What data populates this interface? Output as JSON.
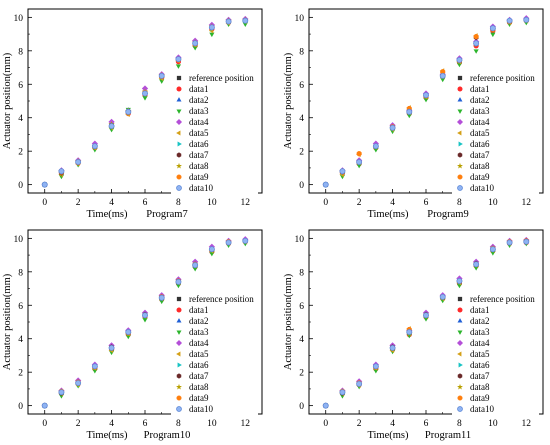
{
  "chart_data": [
    {
      "type": "scatter",
      "ylabel": "Actuator position(mm)",
      "xlabel": "Time(ms)",
      "subtitle": "Program7",
      "xlim": [
        -1,
        13
      ],
      "ylim": [
        -0.5,
        10.5
      ],
      "x_ticks": [
        0,
        2,
        4,
        6,
        8,
        10,
        12
      ],
      "y_ticks": [
        0,
        2,
        4,
        6,
        8,
        10
      ],
      "grid": false,
      "legend_position": "right",
      "x": [
        0,
        1,
        2,
        3,
        4,
        5,
        6,
        7,
        8,
        9,
        10,
        11,
        12
      ],
      "series": [
        {
          "name": "reference position",
          "values": [
            0,
            0.75,
            1.35,
            2.3,
            3.55,
            4.35,
            5.5,
            6.5,
            7.5,
            8.45,
            9.4,
            9.75,
            9.8
          ]
        },
        {
          "name": "data1",
          "values": [
            0,
            0.7,
            1.3,
            2.2,
            3.45,
            4.25,
            5.35,
            6.4,
            7.35,
            8.3,
            9.3,
            9.7,
            9.8
          ]
        },
        {
          "name": "data2",
          "values": [
            0,
            0.8,
            1.4,
            2.35,
            3.6,
            4.45,
            5.6,
            6.55,
            7.55,
            8.5,
            9.45,
            9.8,
            9.85
          ]
        },
        {
          "name": "data3",
          "values": [
            0,
            0.5,
            1.2,
            2.1,
            3.3,
            4.5,
            5.2,
            6.2,
            7.1,
            8.2,
            9.0,
            9.6,
            9.6
          ]
        },
        {
          "name": "data4",
          "values": [
            0,
            0.85,
            1.45,
            2.45,
            3.75,
            4.4,
            5.75,
            6.6,
            7.6,
            8.6,
            9.55,
            9.85,
            9.9
          ]
        },
        {
          "name": "data5",
          "values": [
            0,
            0.6,
            1.25,
            2.2,
            3.4,
            4.2,
            5.4,
            6.35,
            7.4,
            8.35,
            9.2,
            9.65,
            9.75
          ]
        },
        {
          "name": "data6",
          "values": [
            0,
            0.75,
            1.35,
            2.25,
            3.5,
            4.3,
            5.45,
            6.45,
            7.45,
            8.4,
            9.35,
            9.75,
            9.8
          ]
        },
        {
          "name": "data7",
          "values": [
            0,
            0.7,
            1.3,
            2.3,
            3.55,
            4.35,
            5.5,
            6.5,
            7.5,
            8.45,
            9.4,
            9.75,
            9.8
          ]
        },
        {
          "name": "data8",
          "values": [
            0,
            0.8,
            1.4,
            2.3,
            3.6,
            4.4,
            5.55,
            6.55,
            7.5,
            8.5,
            9.45,
            9.8,
            9.85
          ]
        },
        {
          "name": "data9",
          "values": [
            0,
            0.75,
            1.3,
            2.25,
            3.5,
            4.3,
            5.5,
            6.45,
            7.45,
            8.4,
            9.4,
            9.75,
            9.8
          ]
        },
        {
          "name": "data10",
          "values": [
            0,
            0.8,
            1.35,
            2.3,
            3.5,
            4.35,
            5.45,
            6.5,
            7.5,
            8.45,
            9.4,
            9.75,
            9.8
          ]
        }
      ]
    },
    {
      "type": "scatter",
      "ylabel": "Actuator position(mm)",
      "xlabel": "Time(ms)",
      "subtitle": "Program9",
      "xlim": [
        -1,
        13
      ],
      "ylim": [
        -0.5,
        10.5
      ],
      "x_ticks": [
        0,
        2,
        4,
        6,
        8,
        10,
        12
      ],
      "y_ticks": [
        0,
        2,
        4,
        6,
        8,
        10
      ],
      "grid": false,
      "legend_position": "right",
      "x": [
        0,
        1,
        2,
        3,
        4,
        5,
        6,
        7,
        8,
        9,
        10,
        11,
        12
      ],
      "series": [
        {
          "name": "reference position",
          "values": [
            0,
            0.75,
            1.3,
            2.3,
            3.4,
            4.3,
            5.3,
            6.5,
            7.4,
            8.4,
            9.3,
            9.75,
            9.85
          ]
        },
        {
          "name": "data1",
          "values": [
            0,
            0.7,
            1.25,
            2.2,
            3.35,
            4.25,
            5.2,
            6.45,
            7.3,
            8.3,
            9.2,
            9.7,
            9.8
          ]
        },
        {
          "name": "data2",
          "values": [
            0,
            0.8,
            1.4,
            2.35,
            3.5,
            4.4,
            5.4,
            6.55,
            7.5,
            8.5,
            9.4,
            9.8,
            9.9
          ]
        },
        {
          "name": "data3",
          "values": [
            0,
            0.5,
            1.15,
            2.1,
            3.2,
            4.15,
            5.1,
            6.3,
            7.2,
            8.0,
            9.0,
            9.6,
            9.7
          ]
        },
        {
          "name": "data4",
          "values": [
            0,
            0.85,
            1.45,
            2.45,
            3.55,
            4.45,
            5.45,
            6.6,
            7.55,
            8.55,
            9.45,
            9.85,
            9.95
          ]
        },
        {
          "name": "data5",
          "values": [
            0,
            0.6,
            1.8,
            2.25,
            3.3,
            4.6,
            5.25,
            6.8,
            7.35,
            8.9,
            9.25,
            9.7,
            9.8
          ]
        },
        {
          "name": "data6",
          "values": [
            0,
            0.7,
            1.3,
            2.3,
            3.4,
            4.3,
            5.3,
            6.5,
            7.4,
            8.4,
            9.3,
            9.75,
            9.85
          ]
        },
        {
          "name": "data7",
          "values": [
            0,
            0.75,
            1.35,
            2.3,
            3.45,
            4.35,
            5.35,
            6.5,
            7.45,
            8.8,
            9.35,
            9.75,
            9.85
          ]
        },
        {
          "name": "data8",
          "values": [
            0,
            0.8,
            1.3,
            2.25,
            3.4,
            4.3,
            5.3,
            6.45,
            7.4,
            8.4,
            9.3,
            9.75,
            9.8
          ]
        },
        {
          "name": "data9",
          "values": [
            0,
            0.75,
            1.85,
            2.3,
            3.45,
            4.55,
            5.3,
            6.75,
            7.4,
            8.85,
            9.3,
            9.75,
            9.85
          ]
        },
        {
          "name": "data10",
          "values": [
            0,
            0.8,
            1.35,
            2.3,
            3.4,
            4.35,
            5.35,
            6.5,
            7.45,
            8.45,
            9.35,
            9.8,
            9.85
          ]
        }
      ]
    },
    {
      "type": "scatter",
      "ylabel": "Actuator position(mm)",
      "xlabel": "Time(ms)",
      "subtitle": "Program10",
      "xlim": [
        -1,
        13
      ],
      "ylim": [
        -0.5,
        10.5
      ],
      "x_ticks": [
        0,
        2,
        4,
        6,
        8,
        10,
        12
      ],
      "y_ticks": [
        0,
        2,
        4,
        6,
        8,
        10
      ],
      "grid": false,
      "legend_position": "right",
      "x": [
        0,
        1,
        2,
        3,
        4,
        5,
        6,
        7,
        8,
        9,
        10,
        11,
        12
      ],
      "series": [
        {
          "name": "reference position",
          "values": [
            0,
            0.8,
            1.35,
            2.3,
            3.45,
            4.35,
            5.4,
            6.45,
            7.4,
            8.4,
            9.3,
            9.75,
            9.85
          ]
        },
        {
          "name": "data1",
          "values": [
            0,
            0.75,
            1.3,
            2.2,
            3.35,
            4.25,
            5.3,
            6.35,
            7.3,
            8.3,
            9.2,
            9.7,
            9.8
          ]
        },
        {
          "name": "data2",
          "values": [
            0,
            0.85,
            1.45,
            2.4,
            3.55,
            4.45,
            5.5,
            6.55,
            7.5,
            8.5,
            9.4,
            9.8,
            9.9
          ]
        },
        {
          "name": "data3",
          "values": [
            0,
            0.6,
            1.2,
            2.1,
            3.2,
            4.15,
            5.15,
            6.25,
            7.2,
            8.2,
            9.1,
            9.6,
            9.7
          ]
        },
        {
          "name": "data4",
          "values": [
            0,
            0.9,
            1.5,
            2.45,
            3.6,
            4.5,
            5.55,
            6.6,
            7.55,
            8.6,
            9.5,
            9.85,
            9.95
          ]
        },
        {
          "name": "data5",
          "values": [
            0,
            0.7,
            1.25,
            2.25,
            3.3,
            4.3,
            5.35,
            6.4,
            7.35,
            8.35,
            9.25,
            9.7,
            9.8
          ]
        },
        {
          "name": "data6",
          "values": [
            0,
            0.8,
            1.35,
            2.3,
            3.45,
            4.35,
            5.4,
            6.45,
            7.4,
            8.4,
            9.3,
            9.75,
            9.85
          ]
        },
        {
          "name": "data7",
          "values": [
            0,
            0.75,
            1.4,
            2.35,
            3.5,
            4.4,
            5.45,
            6.5,
            7.45,
            8.45,
            9.35,
            9.75,
            9.85
          ]
        },
        {
          "name": "data8",
          "values": [
            0,
            0.8,
            1.3,
            2.3,
            3.4,
            4.3,
            5.35,
            6.45,
            7.4,
            8.4,
            9.3,
            9.75,
            9.8
          ]
        },
        {
          "name": "data9",
          "values": [
            0,
            0.85,
            1.4,
            2.3,
            3.45,
            4.35,
            5.4,
            6.5,
            7.45,
            8.45,
            9.35,
            9.8,
            9.85
          ]
        },
        {
          "name": "data10",
          "values": [
            0,
            0.8,
            1.35,
            2.35,
            3.45,
            4.4,
            5.4,
            6.45,
            7.4,
            8.4,
            9.35,
            9.75,
            9.85
          ]
        }
      ]
    },
    {
      "type": "scatter",
      "ylabel": "Actuator position(mm)",
      "xlabel": "Time(ms)",
      "subtitle": "Program11",
      "xlim": [
        -1,
        13
      ],
      "ylim": [
        -0.5,
        10.5
      ],
      "x_ticks": [
        0,
        2,
        4,
        6,
        8,
        10,
        12
      ],
      "y_ticks": [
        0,
        2,
        4,
        6,
        8,
        10
      ],
      "grid": false,
      "legend_position": "right",
      "x": [
        0,
        1,
        2,
        3,
        4,
        5,
        6,
        7,
        8,
        9,
        10,
        11,
        12
      ],
      "series": [
        {
          "name": "reference position",
          "values": [
            0,
            0.8,
            1.3,
            2.3,
            3.45,
            4.35,
            5.4,
            6.5,
            7.4,
            8.45,
            9.35,
            9.75,
            9.8
          ]
        },
        {
          "name": "data1",
          "values": [
            0,
            0.75,
            1.25,
            2.2,
            3.35,
            4.25,
            5.3,
            6.4,
            7.3,
            8.35,
            9.25,
            9.7,
            9.75
          ]
        },
        {
          "name": "data2",
          "values": [
            0,
            0.85,
            1.4,
            2.35,
            3.55,
            4.45,
            5.5,
            6.55,
            7.5,
            8.55,
            9.45,
            9.8,
            9.85
          ]
        },
        {
          "name": "data3",
          "values": [
            0,
            0.6,
            1.15,
            2.1,
            3.25,
            4.2,
            5.2,
            6.3,
            7.2,
            8.25,
            9.15,
            9.6,
            9.7
          ]
        },
        {
          "name": "data4",
          "values": [
            0,
            0.9,
            1.45,
            2.45,
            3.6,
            4.5,
            5.55,
            6.6,
            7.6,
            8.6,
            9.5,
            9.85,
            9.9
          ]
        },
        {
          "name": "data5",
          "values": [
            0,
            0.7,
            1.2,
            2.25,
            3.3,
            4.6,
            5.35,
            6.4,
            7.35,
            8.4,
            9.3,
            9.7,
            9.75
          ]
        },
        {
          "name": "data6",
          "values": [
            0,
            0.8,
            1.3,
            2.3,
            3.45,
            4.35,
            5.4,
            6.5,
            7.4,
            8.45,
            9.35,
            9.75,
            9.8
          ]
        },
        {
          "name": "data7",
          "values": [
            0,
            0.75,
            1.35,
            2.35,
            3.5,
            4.4,
            5.45,
            6.5,
            7.45,
            8.5,
            9.4,
            9.75,
            9.85
          ]
        },
        {
          "name": "data8",
          "values": [
            0,
            0.8,
            1.3,
            2.3,
            3.4,
            4.3,
            5.35,
            6.45,
            7.4,
            8.4,
            9.3,
            9.75,
            9.8
          ]
        },
        {
          "name": "data9",
          "values": [
            0,
            0.85,
            1.35,
            2.3,
            3.45,
            4.55,
            5.4,
            6.5,
            7.45,
            8.45,
            9.4,
            9.8,
            9.85
          ]
        },
        {
          "name": "data10",
          "values": [
            0,
            0.8,
            1.3,
            2.35,
            3.45,
            4.4,
            5.4,
            6.5,
            7.45,
            8.45,
            9.35,
            9.75,
            9.8
          ]
        }
      ]
    }
  ],
  "series_styles": [
    {
      "name": "reference position",
      "marker": "square",
      "color": "#333333"
    },
    {
      "name": "data1",
      "marker": "circle",
      "color": "#ff2a2a"
    },
    {
      "name": "data2",
      "marker": "triangle-up",
      "color": "#1f5fd6"
    },
    {
      "name": "data3",
      "marker": "triangle-down",
      "color": "#2cb52c"
    },
    {
      "name": "data4",
      "marker": "diamond",
      "color": "#b44fd8"
    },
    {
      "name": "data5",
      "marker": "triangle-left",
      "color": "#d4a017"
    },
    {
      "name": "data6",
      "marker": "triangle-right",
      "color": "#19c4c4"
    },
    {
      "name": "data7",
      "marker": "hexagon",
      "color": "#6b2a2a"
    },
    {
      "name": "data8",
      "marker": "star",
      "color": "#b8a000"
    },
    {
      "name": "data9",
      "marker": "octagon",
      "color": "#ff7f0e"
    },
    {
      "name": "data10",
      "marker": "circle",
      "color": "#8fb3f2",
      "edge_color": "#5a86d6"
    }
  ]
}
